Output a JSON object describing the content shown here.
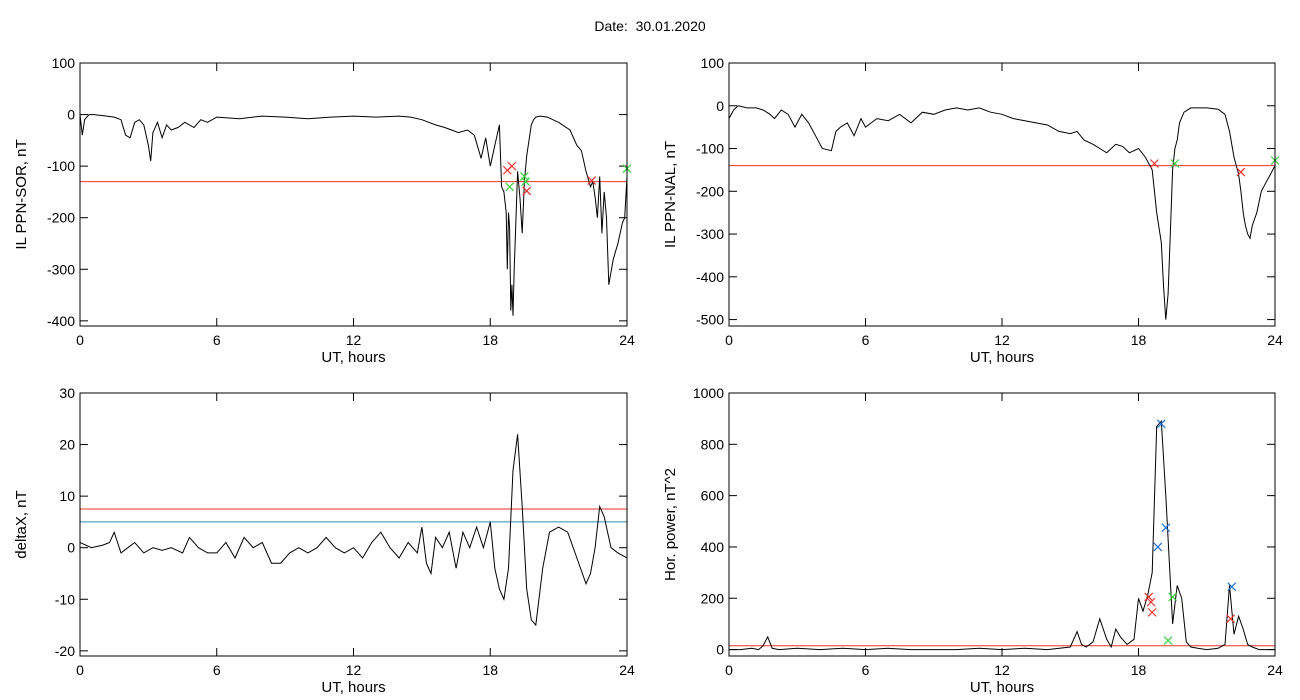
{
  "header": {
    "date_label": "Date:",
    "date_value": "30.01.2020"
  },
  "colors": {
    "threshold_red": "#e8322b",
    "threshold_blue": "#2f8fa6",
    "event_blue": "#1f6fd1",
    "event_green": "#3fcf3f",
    "trace": "#000000"
  },
  "chart_data": [
    {
      "id": "il-sor",
      "type": "line",
      "xlabel": "UT, hours",
      "ylabel": "IL PPN-SOR, nT",
      "xlim": [
        0,
        24
      ],
      "ylim": [
        -410,
        100
      ],
      "xticks": [
        0,
        6,
        12,
        18,
        24
      ],
      "yticks": [
        -400,
        -300,
        -200,
        -100,
        0,
        100
      ],
      "thresholds": [
        {
          "value": -130,
          "color": "#e8322b"
        }
      ],
      "series": [
        {
          "x": [
            0,
            0.1,
            0.2,
            0.3,
            0.4,
            0.6,
            1.0,
            1.5,
            1.8,
            2.0,
            2.2,
            2.4,
            2.6,
            2.8,
            3.0,
            3.1,
            3.2,
            3.4,
            3.6,
            3.8,
            4.0,
            4.3,
            4.6,
            5.0,
            5.3,
            5.6,
            6.0,
            7,
            8,
            9,
            10,
            11,
            12,
            13,
            14,
            14.5,
            15,
            15.3,
            15.6,
            16,
            16.3,
            16.6,
            17,
            17.3,
            17.6,
            17.8,
            18.0,
            18.2,
            18.4,
            18.5,
            18.6,
            18.7,
            18.75,
            18.8,
            18.85,
            18.9,
            18.95,
            19.0,
            19.05,
            19.1,
            19.2,
            19.3,
            19.4,
            19.5,
            19.6,
            19.7,
            19.8,
            19.9,
            20.0,
            20.2,
            20.5,
            21,
            21.5,
            21.8,
            22.0,
            22.2,
            22.4,
            22.5,
            22.6,
            22.7,
            22.8,
            22.9,
            23.0,
            23.1,
            23.2,
            23.4,
            23.6,
            23.8,
            23.9,
            24.0
          ],
          "y": [
            0,
            -40,
            -10,
            -5,
            0,
            0,
            -2,
            -5,
            -10,
            -40,
            -45,
            -15,
            -10,
            -20,
            -60,
            -90,
            -35,
            -15,
            -45,
            -20,
            -30,
            -25,
            -15,
            -25,
            -10,
            -15,
            -5,
            -8,
            -3,
            -5,
            -8,
            -5,
            -3,
            -5,
            -3,
            -5,
            -10,
            -15,
            -20,
            -25,
            -30,
            -35,
            -30,
            -40,
            -85,
            -45,
            -100,
            -60,
            -20,
            -140,
            -150,
            -190,
            -300,
            -190,
            -220,
            -380,
            -330,
            -390,
            -300,
            -240,
            -110,
            -160,
            -230,
            -130,
            -80,
            -50,
            -20,
            -10,
            -5,
            -3,
            -5,
            -15,
            -30,
            -60,
            -70,
            -110,
            -140,
            -130,
            -160,
            -200,
            -120,
            -230,
            -150,
            -200,
            -330,
            -280,
            -250,
            -210,
            -200,
            -120
          ]
        }
      ],
      "markers": [
        {
          "x": 18.75,
          "y": -108,
          "color": "#e8322b"
        },
        {
          "x": 18.95,
          "y": -100,
          "color": "#e8322b"
        },
        {
          "x": 18.85,
          "y": -140,
          "color": "#3fcf3f"
        },
        {
          "x": 19.5,
          "y": -120,
          "color": "#3fcf3f"
        },
        {
          "x": 19.55,
          "y": -130,
          "color": "#3fcf3f"
        },
        {
          "x": 19.6,
          "y": -148,
          "color": "#e8322b"
        },
        {
          "x": 22.45,
          "y": -128,
          "color": "#e8322b"
        },
        {
          "x": 24.0,
          "y": -105,
          "color": "#3fcf3f"
        }
      ]
    },
    {
      "id": "il-nal",
      "type": "line",
      "xlabel": "UT, hours",
      "ylabel": "IL PPN-NAL, nT",
      "xlim": [
        0,
        24
      ],
      "ylim": [
        -515,
        100
      ],
      "xticks": [
        0,
        6,
        12,
        18,
        24
      ],
      "yticks": [
        -500,
        -400,
        -300,
        -200,
        -100,
        0,
        100
      ],
      "thresholds": [
        {
          "value": -140,
          "color": "#e8322b"
        }
      ],
      "series": [
        {
          "x": [
            0,
            0.2,
            0.4,
            0.8,
            1.2,
            1.5,
            1.8,
            2.0,
            2.3,
            2.6,
            2.9,
            3.2,
            3.5,
            3.8,
            4.1,
            4.5,
            4.7,
            4.9,
            5.2,
            5.5,
            5.8,
            6.0,
            6.5,
            7,
            7.5,
            8,
            8.5,
            9,
            9.5,
            10,
            10.5,
            11,
            11.5,
            12,
            12.5,
            13,
            13.5,
            14,
            14.5,
            15,
            15.3,
            15.6,
            16,
            16.3,
            16.6,
            17,
            17.3,
            17.6,
            18,
            18.3,
            18.6,
            18.8,
            19.0,
            19.1,
            19.2,
            19.3,
            19.4,
            19.5,
            19.6,
            19.7,
            19.8,
            20.0,
            20.3,
            21,
            21.5,
            21.8,
            22.0,
            22.2,
            22.4,
            22.5,
            22.6,
            22.7,
            22.8,
            22.9,
            23.0,
            23.2,
            23.4,
            23.6,
            23.8,
            24.0
          ],
          "y": [
            -30,
            -10,
            0,
            -5,
            -5,
            -10,
            -20,
            -30,
            -10,
            -20,
            -50,
            -20,
            -40,
            -70,
            -100,
            -105,
            -60,
            -50,
            -40,
            -70,
            -30,
            -50,
            -30,
            -35,
            -20,
            -40,
            -15,
            -20,
            -10,
            -5,
            -10,
            -5,
            -15,
            -20,
            -30,
            -35,
            -40,
            -45,
            -60,
            -65,
            -60,
            -80,
            -90,
            -100,
            -110,
            -90,
            -95,
            -110,
            -100,
            -120,
            -150,
            -250,
            -320,
            -420,
            -500,
            -440,
            -300,
            -150,
            -100,
            -80,
            -40,
            -15,
            -5,
            -5,
            -8,
            -20,
            -60,
            -120,
            -160,
            -200,
            -250,
            -280,
            -300,
            -310,
            -280,
            -250,
            -200,
            -180,
            -160,
            -140
          ]
        }
      ],
      "markers": [
        {
          "x": 18.7,
          "y": -135,
          "color": "#e8322b"
        },
        {
          "x": 19.6,
          "y": -135,
          "color": "#3fcf3f"
        },
        {
          "x": 22.5,
          "y": -155,
          "color": "#e8322b"
        },
        {
          "x": 24.0,
          "y": -128,
          "color": "#3fcf3f"
        }
      ]
    },
    {
      "id": "deltax",
      "type": "line",
      "xlabel": "UT, hours",
      "ylabel": "deltaX, nT",
      "xlim": [
        0,
        24
      ],
      "ylim": [
        -21,
        30
      ],
      "xticks": [
        0,
        6,
        12,
        18,
        24
      ],
      "yticks": [
        -20,
        -10,
        0,
        10,
        20,
        30
      ],
      "thresholds": [
        {
          "value": 7.5,
          "color": "#e8322b"
        },
        {
          "value": 5,
          "color": "#2f8fa6"
        }
      ],
      "series": [
        {
          "x": [
            0,
            0.5,
            1.0,
            1.3,
            1.5,
            1.8,
            2.1,
            2.4,
            2.8,
            3.2,
            3.6,
            4.0,
            4.5,
            4.8,
            5.2,
            5.6,
            6.0,
            6.4,
            6.8,
            7.2,
            7.6,
            8.0,
            8.4,
            8.8,
            9.2,
            9.6,
            10.0,
            10.4,
            10.8,
            11.2,
            11.6,
            12.0,
            12.4,
            12.8,
            13.2,
            13.6,
            14.0,
            14.4,
            14.8,
            15.0,
            15.2,
            15.4,
            15.6,
            15.9,
            16.2,
            16.5,
            16.8,
            17.1,
            17.4,
            17.7,
            18.0,
            18.2,
            18.4,
            18.6,
            18.8,
            19.0,
            19.2,
            19.4,
            19.6,
            19.8,
            20.0,
            20.3,
            20.6,
            21.0,
            21.4,
            21.8,
            22.2,
            22.4,
            22.6,
            22.8,
            23.0,
            23.3,
            23.6,
            24.0
          ],
          "y": [
            1,
            0,
            0.5,
            1,
            3,
            -1,
            0,
            1,
            -1,
            0,
            -0.5,
            0,
            -1,
            2,
            0,
            -1,
            -1,
            1,
            -2,
            2,
            0,
            1,
            -3,
            -3,
            -1,
            0,
            -1,
            0,
            2,
            0,
            -1,
            0,
            -2,
            1,
            3,
            0,
            -2,
            1,
            -1,
            4,
            -3,
            -5,
            2,
            0,
            3,
            -4,
            3,
            0,
            4,
            0,
            5,
            -4,
            -8,
            -10,
            -4,
            15,
            22,
            8,
            -8,
            -14,
            -15,
            -4,
            3,
            4,
            3,
            -2,
            -7,
            -5,
            0,
            8,
            6,
            0,
            -1,
            -2
          ]
        }
      ],
      "markers": []
    },
    {
      "id": "hor-power",
      "type": "line",
      "xlabel": "UT, hours",
      "ylabel": "Hor. power, nT^2",
      "xlim": [
        0,
        24
      ],
      "ylim": [
        -25,
        1000
      ],
      "xticks": [
        0,
        6,
        12,
        18,
        24
      ],
      "yticks": [
        0,
        200,
        400,
        600,
        800,
        1000
      ],
      "thresholds": [
        {
          "value": 15,
          "color": "#e8322b"
        }
      ],
      "series": [
        {
          "x": [
            0,
            0.5,
            1.0,
            1.3,
            1.5,
            1.7,
            1.9,
            2.2,
            3,
            4,
            5,
            6,
            7,
            8,
            9,
            10,
            11,
            12,
            13,
            14,
            15,
            15.3,
            15.5,
            15.7,
            16.0,
            16.3,
            16.6,
            16.8,
            17.0,
            17.2,
            17.5,
            17.8,
            18.0,
            18.2,
            18.4,
            18.6,
            18.8,
            19.0,
            19.2,
            19.35,
            19.5,
            19.7,
            19.9,
            20.1,
            20.3,
            20.6,
            21,
            21.5,
            21.8,
            22.0,
            22.2,
            22.4,
            22.6,
            22.8,
            23.0,
            23.3,
            23.6,
            24.0
          ],
          "y": [
            0,
            0,
            5,
            0,
            15,
            50,
            5,
            0,
            5,
            0,
            5,
            0,
            5,
            0,
            0,
            0,
            5,
            0,
            5,
            0,
            10,
            70,
            20,
            10,
            30,
            120,
            40,
            10,
            80,
            50,
            20,
            40,
            200,
            150,
            210,
            300,
            870,
            890,
            600,
            350,
            100,
            250,
            200,
            30,
            10,
            5,
            0,
            5,
            20,
            250,
            60,
            130,
            80,
            20,
            10,
            0,
            0,
            0
          ]
        }
      ],
      "markers": [
        {
          "x": 19.0,
          "y": 880,
          "color": "#1f6fd1"
        },
        {
          "x": 18.85,
          "y": 400,
          "color": "#1f6fd1"
        },
        {
          "x": 19.2,
          "y": 475,
          "color": "#1f6fd1"
        },
        {
          "x": 18.45,
          "y": 205,
          "color": "#e8322b"
        },
        {
          "x": 18.55,
          "y": 185,
          "color": "#e8322b"
        },
        {
          "x": 18.6,
          "y": 145,
          "color": "#e8322b"
        },
        {
          "x": 19.3,
          "y": 35,
          "color": "#3fcf3f"
        },
        {
          "x": 19.5,
          "y": 205,
          "color": "#3fcf3f"
        },
        {
          "x": 22.1,
          "y": 245,
          "color": "#1f6fd1"
        },
        {
          "x": 22.05,
          "y": 120,
          "color": "#e8322b"
        }
      ]
    }
  ]
}
